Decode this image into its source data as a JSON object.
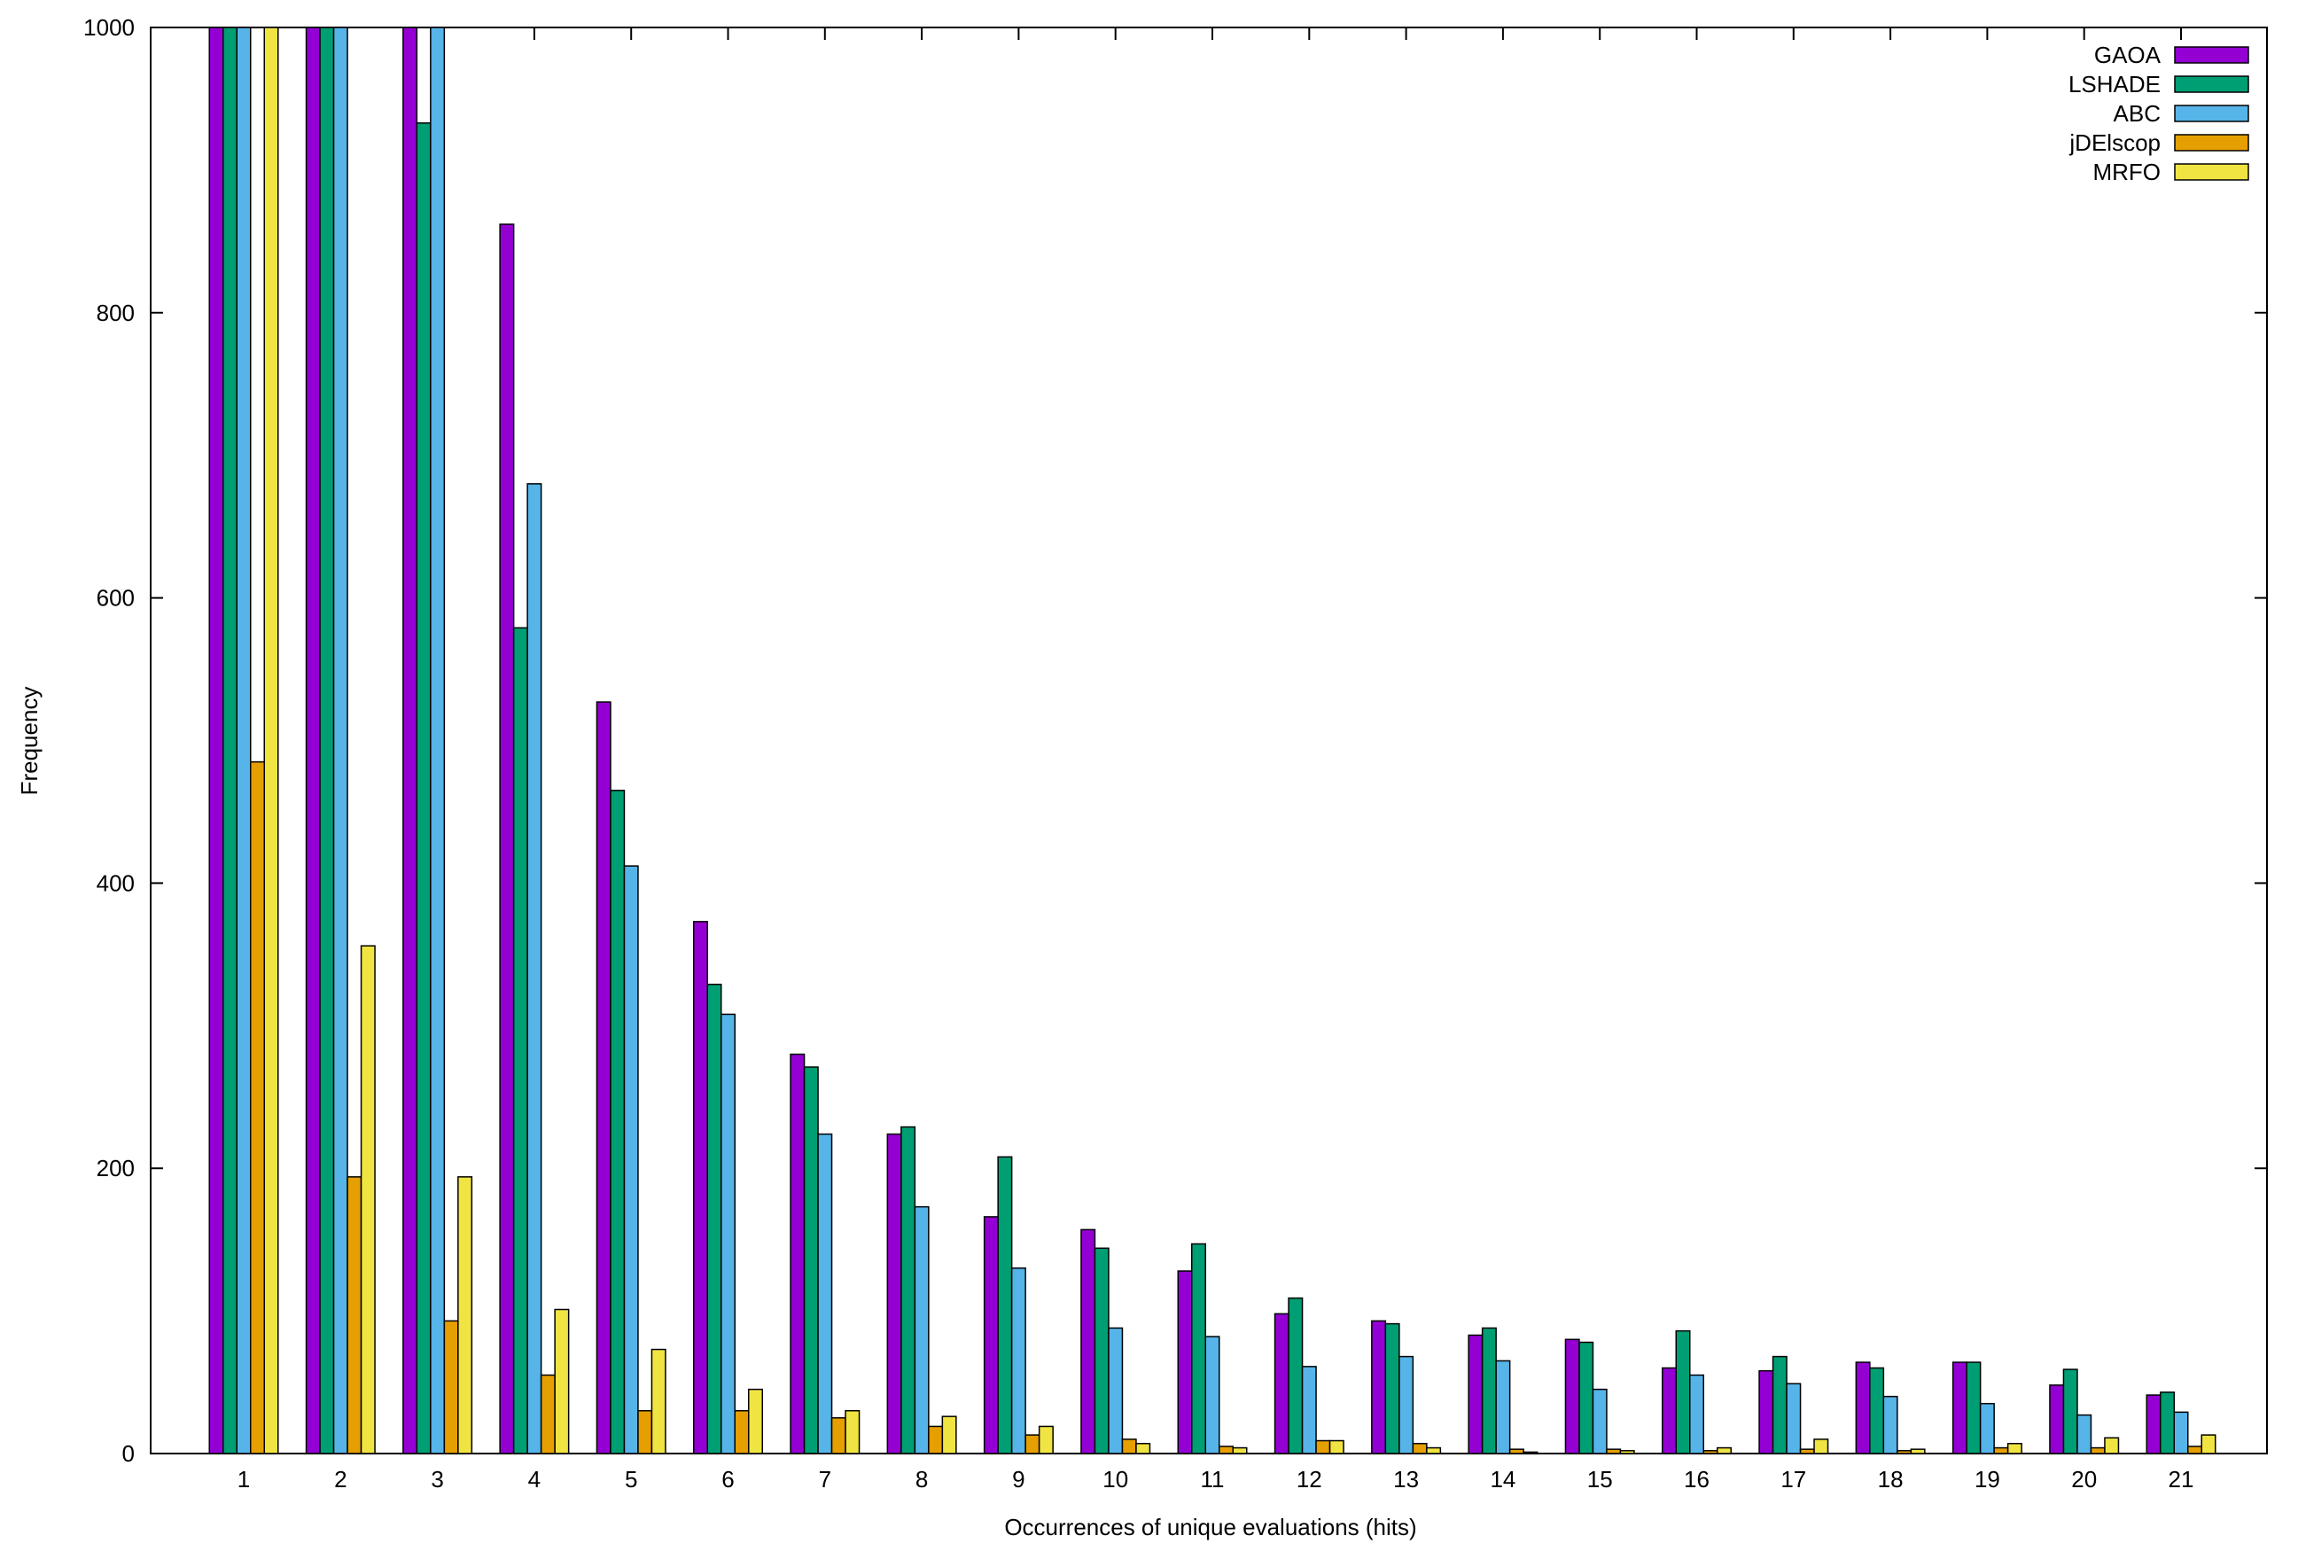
{
  "chart_data": {
    "type": "bar",
    "title": "",
    "xlabel": "Occurrences of unique evaluations (hits)",
    "ylabel": "Frequency",
    "ylim": [
      0,
      1000
    ],
    "yticks": [
      "0",
      "200",
      "400",
      "600",
      "800",
      "1000"
    ],
    "grid": false,
    "legend_position": "top-right",
    "categories": [
      "1",
      "2",
      "3",
      "4",
      "5",
      "6",
      "7",
      "8",
      "9",
      "10",
      "11",
      "12",
      "13",
      "14",
      "15",
      "16",
      "17",
      "18",
      "19",
      "20",
      "21"
    ],
    "series": [
      {
        "name": "GAOA",
        "color": "#9400d3",
        "values": [
          1000,
          1000,
          1000,
          862,
          527,
          373,
          280,
          224,
          166,
          157,
          128,
          98,
          93,
          83,
          80,
          60,
          58,
          64,
          64,
          48,
          41
        ]
      },
      {
        "name": "LSHADE",
        "color": "#009e73",
        "values": [
          1000,
          1000,
          933,
          579,
          465,
          329,
          271,
          229,
          208,
          144,
          147,
          109,
          91,
          88,
          78,
          86,
          68,
          60,
          64,
          59,
          43
        ]
      },
      {
        "name": "ABC",
        "color": "#56b4e9",
        "values": [
          1000,
          1000,
          1000,
          680,
          412,
          308,
          224,
          173,
          130,
          88,
          82,
          61,
          68,
          65,
          45,
          55,
          49,
          40,
          35,
          27,
          29
        ]
      },
      {
        "name": "jDElscop",
        "color": "#e69f00",
        "values": [
          485,
          194,
          93,
          55,
          30,
          30,
          25,
          19,
          13,
          10,
          5,
          9,
          7,
          3,
          3,
          2,
          3,
          2,
          4,
          4,
          5
        ]
      },
      {
        "name": "MRFO",
        "color": "#f0e442",
        "values": [
          1000,
          356,
          194,
          101,
          73,
          45,
          30,
          26,
          19,
          7,
          4,
          9,
          4,
          1,
          2,
          4,
          10,
          3,
          7,
          11,
          13
        ]
      }
    ]
  }
}
